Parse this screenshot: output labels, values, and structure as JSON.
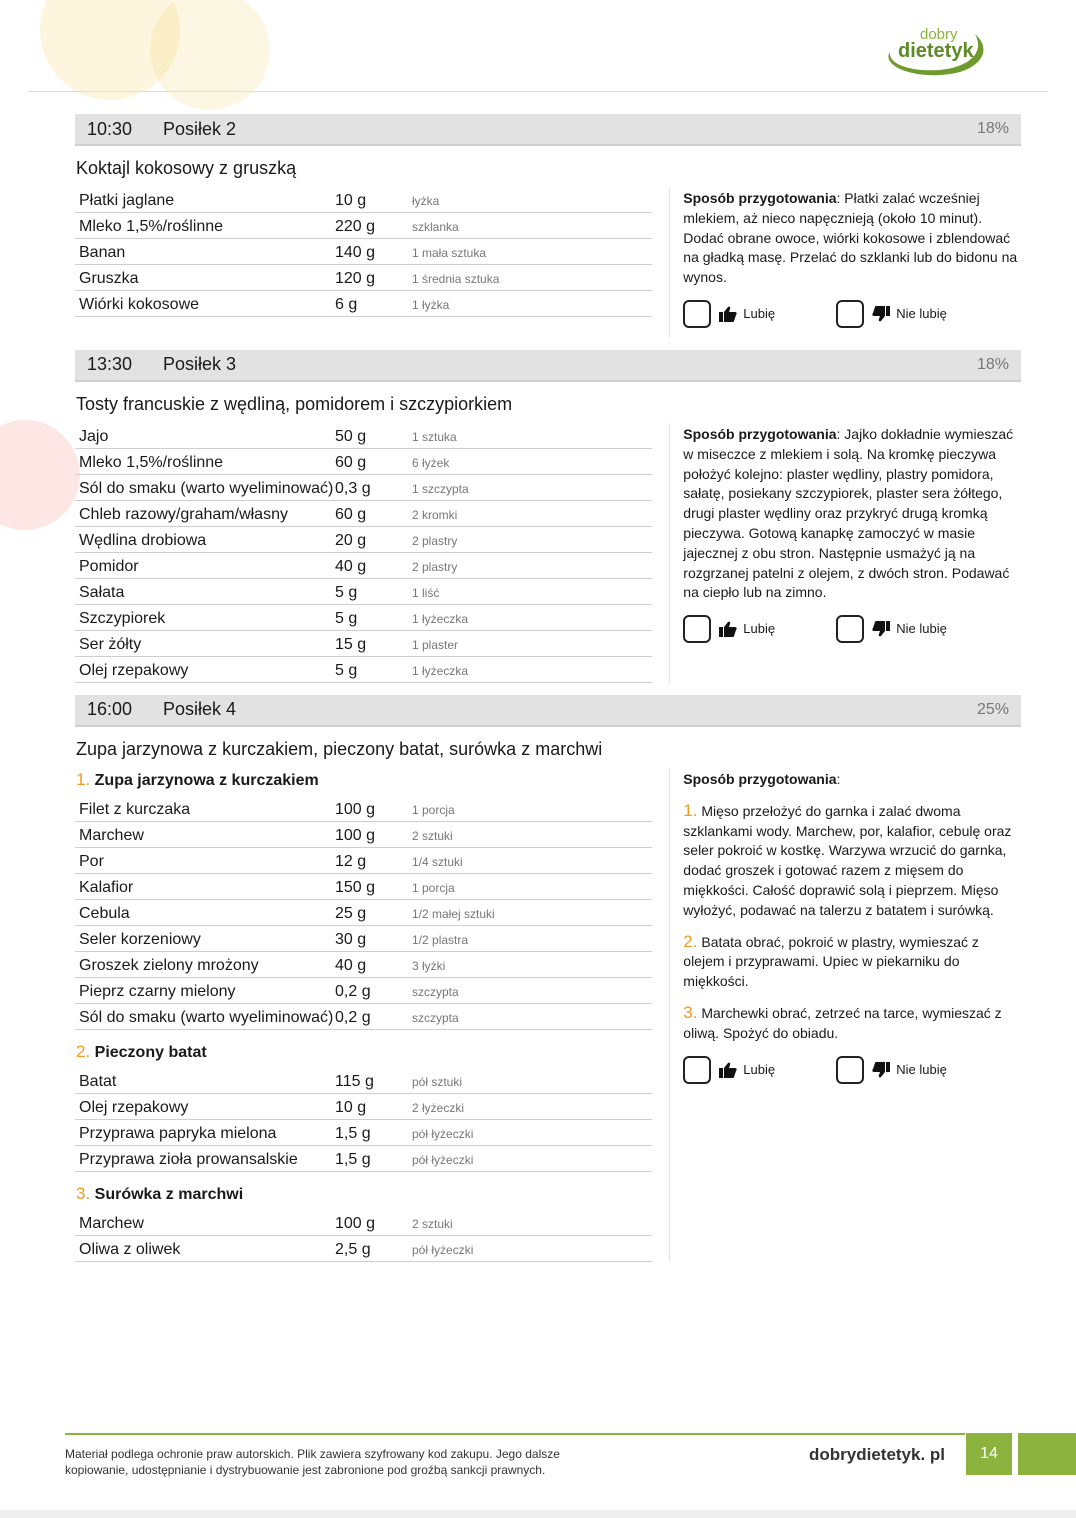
{
  "brand": {
    "logo_top": "dobry",
    "logo_bottom": "dietetyk",
    "site": "dobrydietetyk. pl",
    "page_number": "14",
    "accent": "#8db33f",
    "number_color": "#f39a1e"
  },
  "labels": {
    "prep": "Sposób przygotowania",
    "like": "Lubię",
    "dislike": "Nie lubię"
  },
  "meals": [
    {
      "time": "10:30",
      "name": "Posiłek 2",
      "percent": "18%",
      "dish": "Koktajl kokosowy z gruszką",
      "groups": [
        {
          "items": [
            [
              "Płatki jaglane",
              "10 g",
              "łyżka"
            ],
            [
              "Mleko 1,5%/roślinne",
              "220 g",
              "szklanka"
            ],
            [
              "Banan",
              "140 g",
              "1 mała sztuka"
            ],
            [
              "Gruszka",
              "120 g",
              "1 średnia sztuka"
            ],
            [
              "Wiórki kokosowe",
              "6 g",
              "1 łyżka"
            ]
          ]
        }
      ],
      "prep_inline": "Płatki zalać wcześniej mlekiem, aż nieco napęcznieją (około 10 minut). Dodać obrane owoce, wiórki kokosowe i zblendować na gładką masę. Przelać do szklanki lub do bidonu na wynos."
    },
    {
      "time": "13:30",
      "name": "Posiłek 3",
      "percent": "18%",
      "dish": "Tosty francuskie z wędliną, pomidorem i szczypiorkiem",
      "groups": [
        {
          "items": [
            [
              "Jajo",
              "50 g",
              "1 sztuka"
            ],
            [
              "Mleko 1,5%/roślinne",
              "60 g",
              "6 łyżek"
            ],
            [
              "Sól do smaku (warto wyeliminować)",
              "0,3 g",
              "1 szczypta"
            ],
            [
              "Chleb razowy/graham/własny",
              "60 g",
              "2 kromki"
            ],
            [
              "Wędlina drobiowa",
              "20 g",
              "2 plastry"
            ],
            [
              "Pomidor",
              "40 g",
              "2 plastry"
            ],
            [
              "Sałata",
              "5 g",
              "1 liść"
            ],
            [
              "Szczypiorek",
              "5 g",
              "1 łyżeczka"
            ],
            [
              "Ser żółty",
              "15 g",
              "1 plaster"
            ],
            [
              "Olej rzepakowy",
              "5 g",
              "1 łyżeczka"
            ]
          ]
        }
      ],
      "prep_inline": "Jajko dokładnie wymieszać w miseczce z mlekiem i solą. Na kromkę pieczywa położyć kolejno: plaster wędliny, plastry pomidora, sałatę, posiekany szczypiorek, plaster sera żółtego, drugi plaster wędliny oraz przykryć drugą kromką pieczywa. Gotową kanapkę zamoczyć w masie jajecznej z obu stron. Następnie usmażyć ją na rozgrzanej patelni z olejem, z dwóch stron. Podawać na ciepło lub na zimno."
    },
    {
      "time": "16:00",
      "name": "Posiłek 4",
      "percent": "25%",
      "dish": "Zupa jarzynowa z kurczakiem, pieczony batat, surówka z marchwi",
      "groups": [
        {
          "num": "1.",
          "title": "Zupa jarzynowa z kurczakiem",
          "items": [
            [
              "Filet z kurczaka",
              "100 g",
              "1 porcja"
            ],
            [
              "Marchew",
              "100 g",
              "2 sztuki"
            ],
            [
              "Por",
              "12 g",
              "1/4 sztuki"
            ],
            [
              "Kalafior",
              "150 g",
              "1 porcja"
            ],
            [
              "Cebula",
              "25 g",
              "1/2 małej sztuki"
            ],
            [
              "Seler korzeniowy",
              "30 g",
              "1/2 plastra"
            ],
            [
              "Groszek zielony mrożony",
              "40 g",
              "3 łyżki"
            ],
            [
              "Pieprz czarny mielony",
              "0,2 g",
              "szczypta"
            ],
            [
              "Sól do smaku (warto wyeliminować)",
              "0,2 g",
              "szczypta"
            ]
          ]
        },
        {
          "num": "2.",
          "title": "Pieczony batat",
          "items": [
            [
              "Batat",
              "115 g",
              "pół sztuki"
            ],
            [
              "Olej rzepakowy",
              "10 g",
              "2 łyżeczki"
            ],
            [
              "Przyprawa papryka mielona",
              "1,5 g",
              "pół łyżeczki"
            ],
            [
              "Przyprawa zioła prowansalskie",
              "1,5 g",
              "pół łyżeczki"
            ]
          ]
        },
        {
          "num": "3.",
          "title": "Surówka z marchwi",
          "items": [
            [
              "Marchew",
              "100 g",
              "2 sztuki"
            ],
            [
              "Oliwa z oliwek",
              "2,5 g",
              "pół łyżeczki"
            ]
          ]
        }
      ],
      "prep_steps": [
        [
          "1.",
          "Mięso przełożyć do garnka i zalać dwoma szklankami wody. Marchew, por, kalafior, cebulę oraz seler pokroić w kostkę. Warzywa wrzucić do garnka, dodać groszek i gotować razem z mięsem do miękkości. Całość doprawić solą i pieprzem. Mięso wyłożyć, podawać na talerzu z batatem i surówką."
        ],
        [
          "2.",
          "Batata obrać, pokroić w plastry, wymieszać z olejem i przyprawami. Upiec w piekarniku do miękkości."
        ],
        [
          "3.",
          "Marchewki obrać, zetrzeć na tarce, wymieszać z oliwą. Spożyć do obiadu."
        ]
      ]
    }
  ],
  "footer": {
    "copyright": "Materiał podlega ochronie praw autorskich. Plik zawiera szyfrowany kod zakupu. Jego dalsze kopiowanie, udostępnianie i dystrybuowanie jest zabronione pod groźbą sankcji prawnych."
  }
}
